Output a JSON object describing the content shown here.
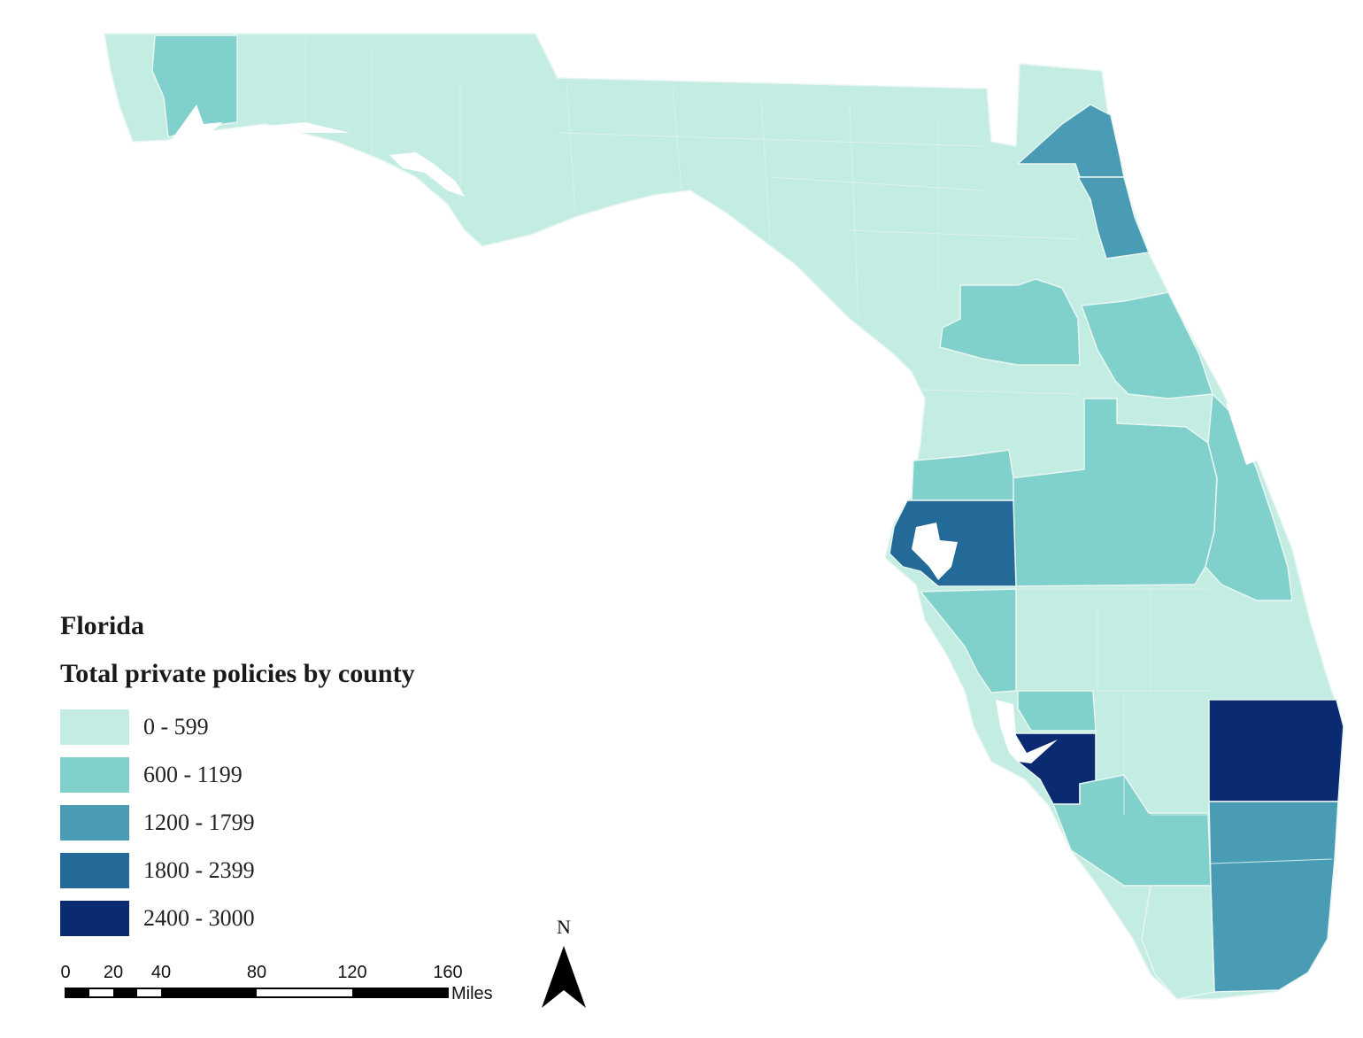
{
  "map": {
    "region": "Florida",
    "colors": {
      "class_0_599": "#c3ece3",
      "class_600_1199": "#80d0cb",
      "class_1200_1799": "#4a9cb5",
      "class_1800_2399": "#236a98",
      "class_2400_3000": "#0a2a72",
      "water": "#ffffff"
    }
  },
  "legend": {
    "title": "Florida",
    "subtitle": "Total private policies by county",
    "items": [
      {
        "label": "0 - 599",
        "color": "#c3ece3"
      },
      {
        "label": "600 - 1199",
        "color": "#80d0cb"
      },
      {
        "label": "1200 - 1799",
        "color": "#4a9cb5"
      },
      {
        "label": "1800 - 2399",
        "color": "#236a98"
      },
      {
        "label": "2400 - 3000",
        "color": "#0a2a72"
      }
    ]
  },
  "scale_bar": {
    "ticks": [
      "0",
      "20",
      "40",
      "80",
      "120",
      "160"
    ],
    "unit": "Miles"
  },
  "north_arrow": {
    "label": "N",
    "icon": "north-arrow-icon"
  }
}
